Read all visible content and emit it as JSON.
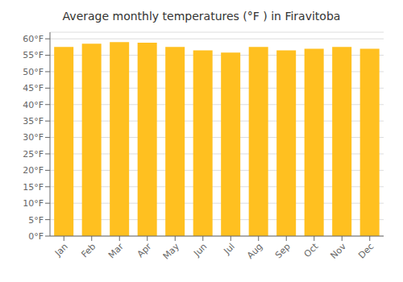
{
  "chart_data": {
    "type": "bar",
    "title": "Average monthly temperatures (°F ) in Firavitoba",
    "categories": [
      "Jan",
      "Feb",
      "Mar",
      "Apr",
      "May",
      "Jun",
      "Jul",
      "Aug",
      "Sep",
      "Oct",
      "Nov",
      "Dec"
    ],
    "values": [
      57.5,
      58.5,
      59.0,
      58.8,
      57.5,
      56.5,
      55.8,
      57.5,
      56.5,
      57.0,
      57.5,
      57.0
    ],
    "color": "#FFC020",
    "ylim": [
      0,
      62
    ],
    "yticks": [
      {
        "value": 0,
        "label": "0°F"
      },
      {
        "value": 5,
        "label": "5°F"
      },
      {
        "value": 10,
        "label": "10°F"
      },
      {
        "value": 15,
        "label": "15°F"
      },
      {
        "value": 20,
        "label": "20°F"
      },
      {
        "value": 25,
        "label": "25°F"
      },
      {
        "value": 30,
        "label": "30°F"
      },
      {
        "value": 35,
        "label": "35°F"
      },
      {
        "value": 40,
        "label": "40°F"
      },
      {
        "value": 45,
        "label": "45°F"
      },
      {
        "value": 50,
        "label": "50°F"
      },
      {
        "value": 55,
        "label": "55°F"
      },
      {
        "value": 60,
        "label": "60°F"
      }
    ],
    "grid": true
  }
}
